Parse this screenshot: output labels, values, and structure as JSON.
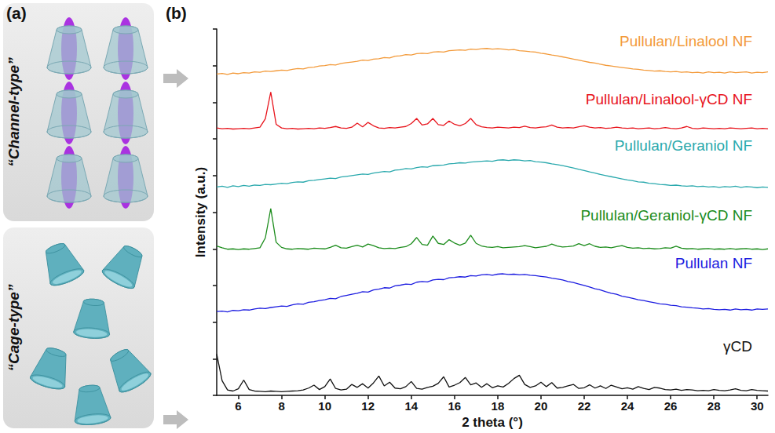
{
  "panel_labels": [
    "(a)",
    "(b)"
  ],
  "diagram": {
    "boxes": [
      {
        "label": "“Channel-type”"
      },
      {
        "label": "“Cage-type”"
      }
    ]
  },
  "chart_data": {
    "type": "line",
    "x_label": "2 theta (°)",
    "y_label": "Intensity (a.u.)",
    "xlim": [
      5,
      30.5
    ],
    "xticks": [
      6,
      8,
      10,
      12,
      14,
      16,
      18,
      20,
      22,
      24,
      26,
      28,
      30
    ],
    "ylim": [
      0,
      100
    ],
    "yticks": [
      0,
      10,
      20,
      30,
      40,
      50,
      60,
      70,
      80,
      90,
      100
    ],
    "tick_labels": "x",
    "grid": false,
    "x": [
      5,
      5.25,
      5.5,
      5.75,
      6,
      6.25,
      6.5,
      6.75,
      7,
      7.25,
      7.5,
      7.75,
      8,
      8.25,
      8.5,
      8.75,
      9,
      9.25,
      9.5,
      9.75,
      10,
      10.25,
      10.5,
      10.75,
      11,
      11.25,
      11.5,
      11.75,
      12,
      12.25,
      12.5,
      12.75,
      13,
      13.25,
      13.5,
      13.75,
      14,
      14.25,
      14.5,
      14.75,
      15,
      15.25,
      15.5,
      15.75,
      16,
      16.25,
      16.5,
      16.75,
      17,
      17.25,
      17.5,
      17.75,
      18,
      18.25,
      18.5,
      18.75,
      19,
      19.25,
      19.5,
      19.75,
      20,
      20.25,
      20.5,
      20.75,
      21,
      21.25,
      21.5,
      21.75,
      22,
      22.25,
      22.5,
      22.75,
      23,
      23.25,
      23.5,
      23.75,
      24,
      24.25,
      24.5,
      24.75,
      25,
      25.25,
      25.5,
      25.75,
      26,
      26.25,
      26.5,
      26.75,
      27,
      27.25,
      27.5,
      27.75,
      28,
      28.25,
      28.5,
      28.75,
      29,
      29.25,
      29.5,
      29.75,
      30,
      30.25,
      30.5
    ],
    "series": [
      {
        "name": "Pullulan/Linalool NF",
        "color": "#f39a3a",
        "values": [
          87.7,
          87.9,
          87.6,
          88.0,
          87.8,
          88.1,
          88.0,
          88.3,
          88.2,
          88.5,
          88.4,
          88.6,
          88.8,
          88.7,
          89.0,
          89.2,
          89.1,
          89.5,
          89.6,
          89.9,
          90.0,
          90.3,
          90.2,
          90.6,
          90.8,
          91.0,
          91.2,
          91.5,
          91.4,
          91.8,
          91.9,
          92.2,
          92.1,
          92.6,
          92.7,
          93.0,
          92.9,
          93.3,
          93.4,
          93.3,
          93.7,
          93.8,
          93.7,
          94.1,
          94.2,
          94.3,
          94.2,
          94.5,
          94.4,
          94.6,
          94.7,
          94.5,
          94.6,
          94.5,
          94.3,
          94.4,
          94.1,
          94.0,
          93.8,
          93.7,
          93.4,
          93.2,
          92.9,
          92.7,
          92.4,
          92.1,
          91.8,
          91.5,
          91.2,
          90.9,
          90.7,
          90.4,
          90.1,
          89.9,
          89.7,
          89.5,
          89.3,
          89.1,
          89.0,
          88.8,
          88.7,
          88.5,
          88.6,
          88.4,
          88.3,
          88.4,
          88.2,
          88.3,
          88.1,
          88.2,
          88.0,
          88.3,
          88.1,
          88.2,
          88.0,
          88.3,
          88.1,
          88.2,
          88.3,
          88.0,
          88.2,
          88.1,
          88.3
        ]
      },
      {
        "name": "Pullulan/Linalool-γCD NF",
        "color": "#e8141c",
        "values": [
          73.0,
          72.8,
          72.9,
          72.7,
          72.8,
          72.9,
          72.8,
          73.0,
          73.2,
          75.5,
          82.8,
          74.0,
          73.0,
          72.8,
          72.9,
          72.7,
          72.8,
          72.9,
          72.8,
          73.0,
          72.9,
          73.1,
          73.4,
          73.0,
          72.9,
          73.2,
          74.3,
          73.3,
          74.5,
          73.6,
          73.0,
          72.9,
          73.1,
          73.0,
          73.2,
          73.4,
          74.2,
          75.6,
          73.8,
          74.1,
          75.6,
          73.9,
          73.7,
          74.9,
          74.0,
          73.6,
          74.2,
          75.6,
          73.9,
          73.3,
          73.1,
          73.0,
          73.2,
          73.1,
          73.0,
          73.2,
          73.1,
          73.5,
          73.1,
          73.0,
          73.2,
          73.3,
          73.8,
          73.2,
          73.0,
          73.1,
          73.0,
          73.3,
          73.6,
          73.2,
          73.0,
          73.1,
          72.9,
          73.0,
          73.2,
          73.0,
          72.9,
          73.0,
          72.8,
          72.9,
          73.0,
          72.8,
          72.9,
          73.1,
          72.9,
          72.8,
          73.0,
          73.4,
          72.9,
          72.8,
          73.0,
          72.9,
          72.8,
          72.9,
          72.8,
          73.0,
          72.9,
          72.8,
          72.9,
          73.0,
          72.8,
          72.9,
          72.8
        ]
      },
      {
        "name": "Pullulan/Geraniol NF",
        "color": "#2aa9ad",
        "values": [
          56.9,
          57.1,
          56.8,
          57.2,
          57.0,
          57.3,
          57.1,
          57.4,
          57.3,
          57.6,
          57.5,
          57.7,
          57.9,
          57.8,
          58.1,
          58.3,
          58.2,
          58.6,
          58.7,
          58.9,
          59.1,
          59.3,
          59.2,
          59.6,
          59.8,
          60.0,
          60.2,
          60.4,
          60.3,
          60.7,
          60.9,
          61.1,
          61.0,
          61.5,
          61.6,
          61.9,
          61.8,
          62.2,
          62.4,
          62.3,
          62.7,
          62.8,
          62.9,
          63.2,
          63.3,
          63.5,
          63.4,
          63.7,
          63.8,
          63.9,
          64.0,
          63.9,
          64.2,
          64.3,
          64.1,
          64.3,
          64.2,
          64.0,
          64.1,
          63.8,
          63.7,
          63.5,
          63.2,
          63.0,
          62.7,
          62.4,
          62.1,
          61.7,
          61.4,
          61.0,
          60.7,
          60.3,
          60.0,
          59.7,
          59.4,
          59.1,
          58.8,
          58.6,
          58.3,
          58.2,
          57.9,
          57.8,
          57.6,
          57.5,
          57.3,
          57.4,
          57.2,
          57.1,
          57.2,
          57.0,
          57.1,
          56.9,
          57.0,
          56.8,
          57.0,
          56.9,
          57.1,
          56.8,
          57.0,
          56.9,
          56.7,
          56.9,
          56.8
        ]
      },
      {
        "name": "Pullulan/Geraniol-γCD NF",
        "color": "#1b8c1b",
        "values": [
          40.8,
          40.3,
          39.9,
          40.0,
          39.8,
          40.0,
          39.9,
          40.1,
          40.3,
          43.0,
          51.0,
          41.8,
          40.4,
          40.0,
          39.9,
          40.1,
          40.0,
          39.9,
          40.2,
          40.1,
          40.0,
          40.4,
          41.0,
          40.3,
          40.2,
          40.6,
          41.0,
          40.5,
          41.3,
          40.9,
          40.3,
          40.1,
          40.2,
          40.1,
          40.4,
          40.6,
          41.4,
          43.1,
          41.2,
          41.0,
          43.5,
          41.5,
          41.2,
          42.5,
          41.6,
          41.0,
          41.6,
          43.7,
          41.5,
          40.8,
          40.5,
          40.4,
          40.6,
          40.3,
          40.4,
          40.5,
          40.6,
          40.9,
          40.6,
          40.3,
          40.5,
          40.7,
          41.3,
          40.8,
          40.5,
          40.6,
          40.8,
          41.4,
          40.9,
          41.4,
          40.7,
          40.4,
          40.5,
          40.3,
          40.6,
          40.9,
          40.4,
          40.2,
          40.3,
          40.1,
          40.2,
          40.0,
          40.1,
          40.3,
          40.2,
          40.7,
          40.2,
          40.0,
          40.1,
          39.9,
          40.0,
          40.1,
          39.9,
          40.0,
          39.9,
          40.1,
          39.9,
          40.0,
          40.1,
          39.9,
          40.0,
          39.8,
          40.0
        ]
      },
      {
        "name": "Pullulan NF",
        "color": "#1c1ce0",
        "values": [
          22.9,
          23.0,
          22.8,
          23.2,
          23.1,
          23.4,
          23.3,
          23.6,
          23.8,
          23.7,
          24.0,
          24.2,
          24.4,
          24.3,
          24.7,
          25.0,
          24.9,
          25.4,
          25.6,
          25.9,
          26.1,
          26.5,
          26.4,
          27.0,
          27.3,
          27.6,
          27.9,
          28.3,
          28.2,
          28.8,
          29.0,
          29.4,
          29.3,
          29.9,
          30.1,
          30.4,
          30.3,
          30.9,
          31.1,
          31.0,
          31.5,
          31.7,
          31.6,
          32.1,
          32.2,
          32.4,
          32.3,
          32.7,
          32.6,
          32.9,
          33.0,
          32.8,
          33.1,
          33.2,
          33.0,
          33.1,
          32.9,
          33.0,
          32.8,
          32.7,
          32.5,
          32.3,
          32.0,
          31.8,
          31.5,
          31.1,
          30.8,
          30.4,
          30.0,
          29.6,
          29.1,
          28.8,
          28.3,
          27.9,
          27.6,
          27.1,
          26.8,
          26.5,
          26.1,
          25.9,
          25.6,
          25.3,
          25.0,
          24.9,
          24.6,
          24.5,
          24.2,
          24.1,
          23.9,
          23.8,
          23.6,
          23.7,
          23.5,
          23.4,
          23.5,
          23.3,
          23.6,
          23.4,
          23.5,
          23.3,
          23.6,
          23.5,
          23.6
        ]
      },
      {
        "name": "γCD",
        "color": "#111111",
        "values": [
          11.3,
          4.0,
          1.5,
          1.2,
          1.8,
          4.2,
          1.6,
          1.2,
          1.1,
          1.0,
          1.2,
          1.1,
          1.0,
          1.1,
          1.2,
          1.3,
          1.5,
          2.0,
          2.8,
          1.6,
          2.4,
          4.5,
          1.9,
          1.5,
          1.7,
          3.0,
          2.2,
          3.2,
          2.0,
          3.4,
          5.3,
          2.6,
          3.6,
          2.0,
          1.8,
          2.4,
          3.8,
          1.9,
          1.7,
          2.2,
          2.5,
          3.3,
          5.1,
          2.3,
          2.8,
          3.5,
          4.9,
          2.9,
          3.4,
          2.2,
          3.2,
          2.1,
          2.6,
          2.3,
          3.3,
          4.6,
          5.5,
          3.0,
          2.2,
          2.6,
          3.6,
          2.4,
          3.5,
          2.0,
          2.2,
          2.6,
          3.0,
          1.9,
          2.1,
          2.9,
          2.0,
          2.6,
          1.9,
          2.8,
          2.3,
          1.8,
          2.1,
          1.7,
          2.4,
          1.9,
          1.6,
          2.2,
          2.0,
          1.6,
          1.5,
          1.7,
          1.4,
          1.6,
          1.5,
          1.3,
          1.4,
          1.3,
          1.6,
          1.4,
          1.3,
          1.5,
          1.8,
          1.4,
          1.3,
          1.6,
          1.4,
          1.3,
          1.2
        ]
      }
    ],
    "annotations": [
      {
        "text": "*",
        "x": 7.5,
        "y": 82.8
      },
      {
        "text": "*",
        "x": 14.25,
        "y": 75.6
      },
      {
        "text": "*",
        "x": 15,
        "y": 75.6
      },
      {
        "text": "*",
        "x": 15.75,
        "y": 74.9
      },
      {
        "text": "*",
        "x": 16.75,
        "y": 75.6
      },
      {
        "text": "*",
        "x": 7.5,
        "y": 51.0
      },
      {
        "text": "*",
        "x": 14.25,
        "y": 43.1
      },
      {
        "text": "*",
        "x": 15,
        "y": 43.5
      },
      {
        "text": "*",
        "x": 15.75,
        "y": 42.5
      },
      {
        "text": "*",
        "x": 16.75,
        "y": 43.7
      }
    ]
  }
}
